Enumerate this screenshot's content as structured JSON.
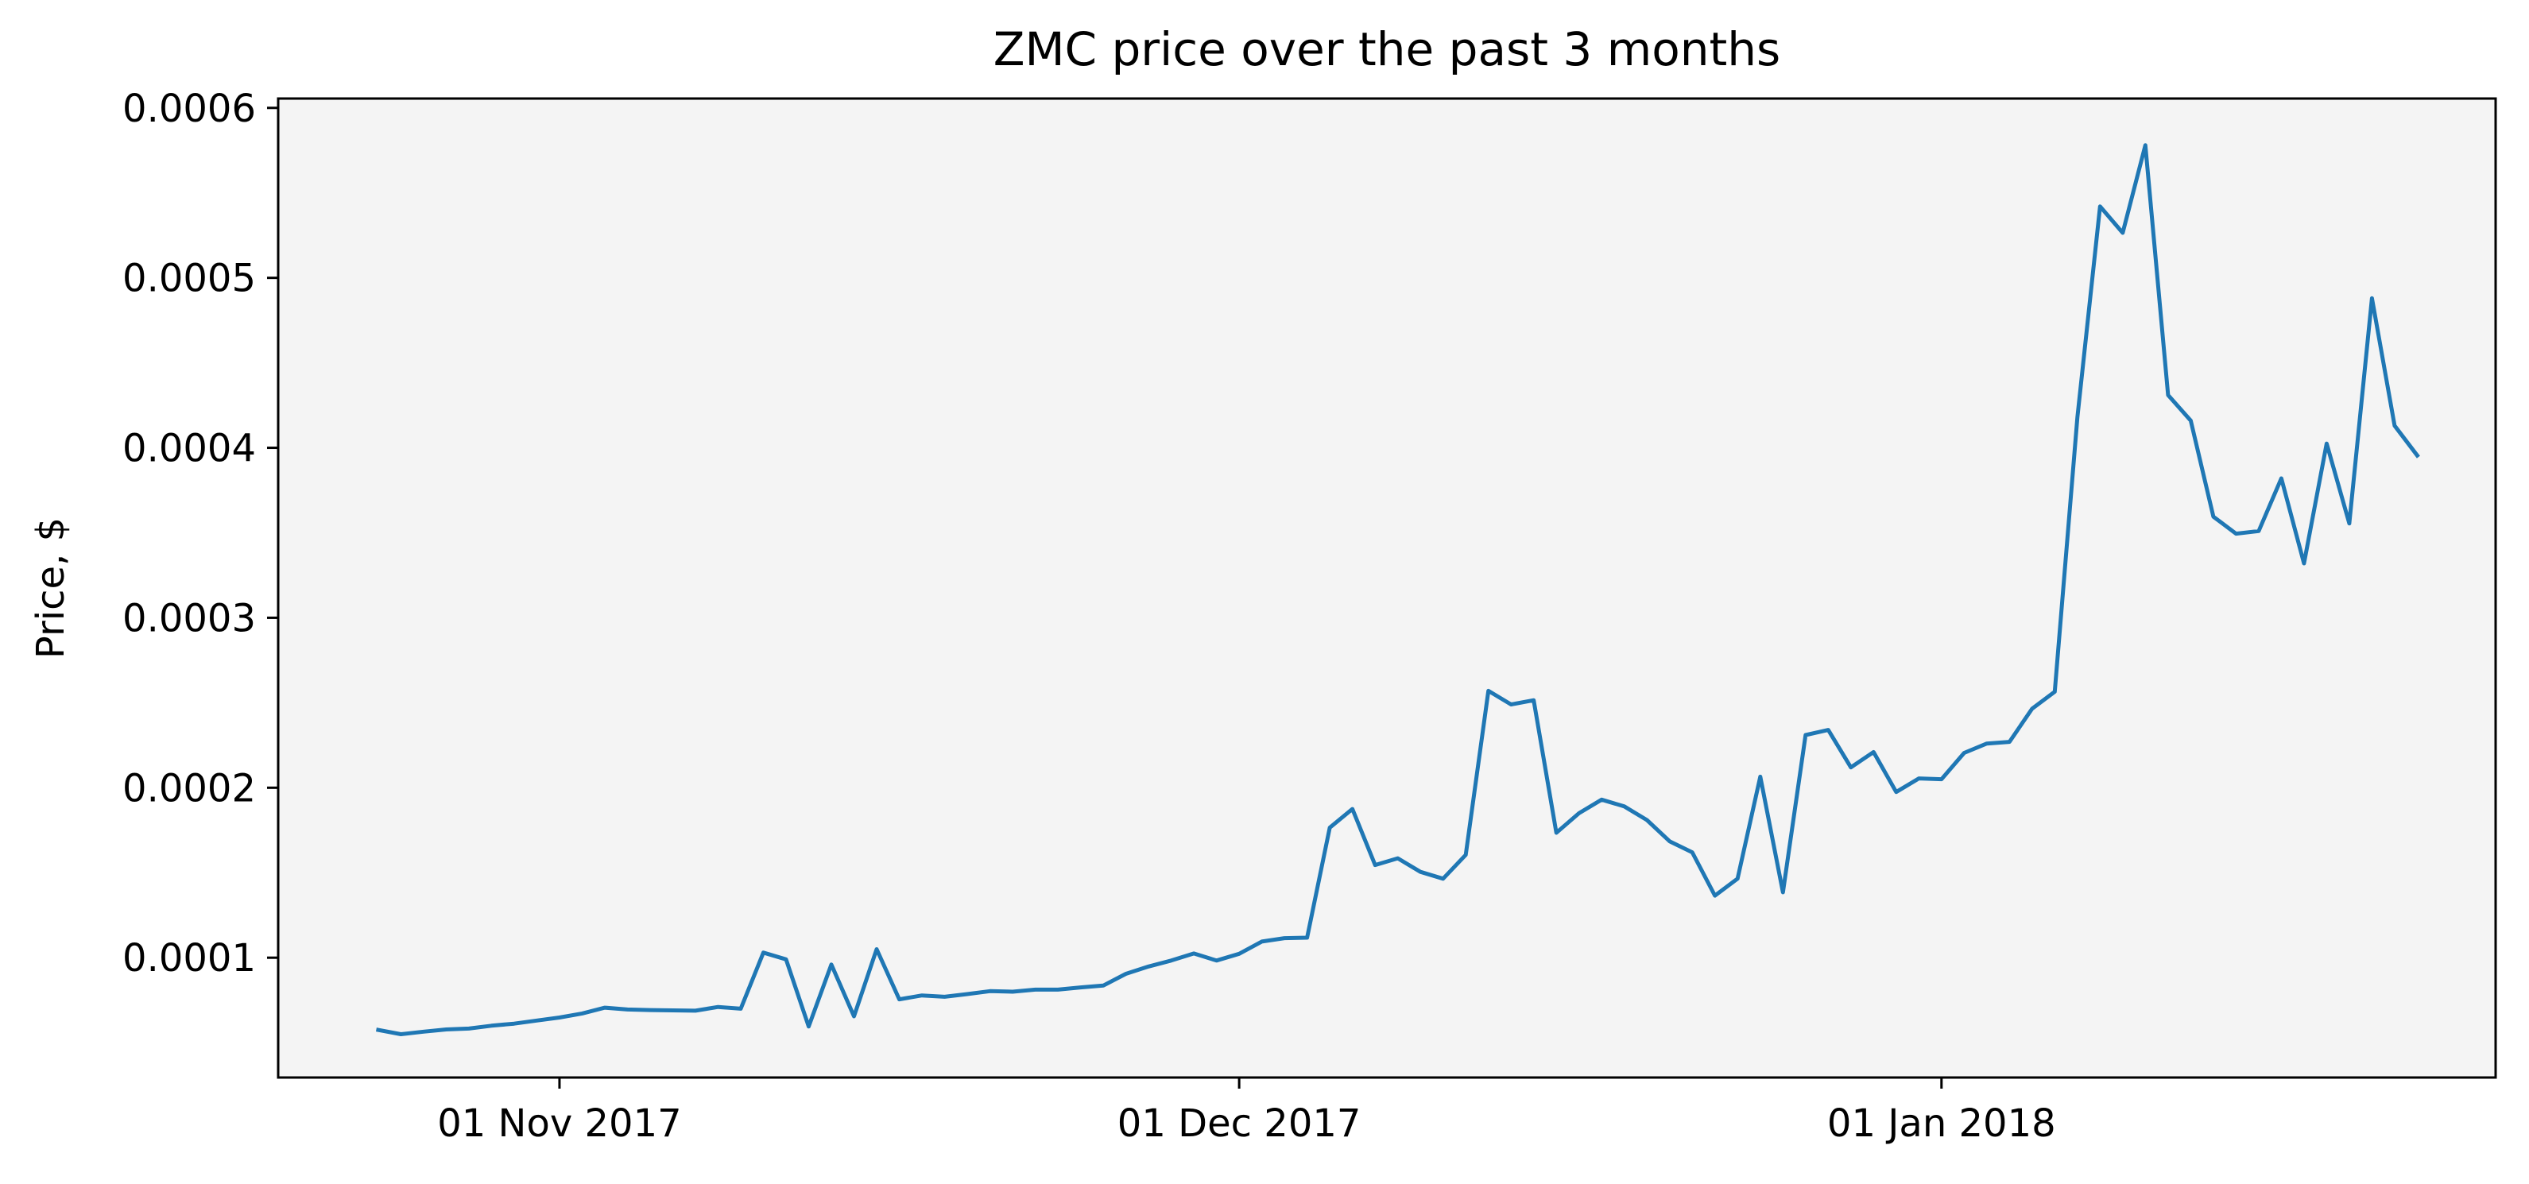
{
  "chart_data": {
    "type": "line",
    "title": "ZMC price over the past 3 months",
    "xlabel": "",
    "ylabel": "Price, $",
    "x_ticks": [
      {
        "date": "2017-11-01",
        "label": "01 Nov 2017"
      },
      {
        "date": "2017-12-01",
        "label": "01 Dec 2017"
      },
      {
        "date": "2018-01-01",
        "label": "01 Jan 2018"
      }
    ],
    "y_ticks": [
      {
        "value": 0.0001,
        "label": "0.0001"
      },
      {
        "value": 0.0002,
        "label": "0.0002"
      },
      {
        "value": 0.0003,
        "label": "0.0003"
      },
      {
        "value": 0.0004,
        "label": "0.0004"
      },
      {
        "value": 0.0005,
        "label": "0.0005"
      },
      {
        "value": 0.0006,
        "label": "0.0006"
      }
    ],
    "xlim": [
      "2017-10-19T14:00",
      "2018-01-25T11:00"
    ],
    "ylim": [
      2.95e-05,
      0.0006055
    ],
    "grid": false,
    "colors": {
      "line": "#1f77b4",
      "plot_background": "#f4f4f4",
      "axes": "#000000"
    },
    "series": [
      {
        "x": [
          "2017-10-24",
          "2017-10-25",
          "2017-10-26",
          "2017-10-27",
          "2017-10-28",
          "2017-10-29",
          "2017-10-30",
          "2017-10-31",
          "2017-11-01",
          "2017-11-02",
          "2017-11-03",
          "2017-11-04",
          "2017-11-05",
          "2017-11-06",
          "2017-11-07",
          "2017-11-08",
          "2017-11-09",
          "2017-11-10",
          "2017-11-11",
          "2017-11-12",
          "2017-11-13",
          "2017-11-14",
          "2017-11-15",
          "2017-11-16",
          "2017-11-17",
          "2017-11-18",
          "2017-11-19",
          "2017-11-20",
          "2017-11-21",
          "2017-11-22",
          "2017-11-23",
          "2017-11-24",
          "2017-11-25",
          "2017-11-26",
          "2017-11-27",
          "2017-11-28",
          "2017-11-29",
          "2017-11-30",
          "2017-12-01",
          "2017-12-02",
          "2017-12-03",
          "2017-12-04",
          "2017-12-05",
          "2017-12-06",
          "2017-12-07",
          "2017-12-08",
          "2017-12-09",
          "2017-12-10",
          "2017-12-11",
          "2017-12-12",
          "2017-12-13",
          "2017-12-14",
          "2017-12-15",
          "2017-12-16",
          "2017-12-17",
          "2017-12-18",
          "2017-12-19",
          "2017-12-20",
          "2017-12-21",
          "2017-12-22",
          "2017-12-23",
          "2017-12-24",
          "2017-12-25",
          "2017-12-26",
          "2017-12-27",
          "2017-12-28",
          "2017-12-29",
          "2017-12-30",
          "2017-12-31",
          "2018-01-01",
          "2018-01-02",
          "2018-01-03",
          "2018-01-04",
          "2018-01-05",
          "2018-01-06",
          "2018-01-07",
          "2018-01-08",
          "2018-01-09",
          "2018-01-10",
          "2018-01-11",
          "2018-01-12",
          "2018-01-13",
          "2018-01-14",
          "2018-01-15",
          "2018-01-16",
          "2018-01-17",
          "2018-01-18",
          "2018-01-19",
          "2018-01-20",
          "2018-01-21",
          "2018-01-22"
        ],
        "y": [
          5.75e-05,
          5.5e-05,
          5.65e-05,
          5.78e-05,
          5.83e-05,
          6e-05,
          6.12e-05,
          6.3e-05,
          6.48e-05,
          6.72e-05,
          7.06e-05,
          6.95e-05,
          6.92e-05,
          6.9e-05,
          6.88e-05,
          7.1e-05,
          7e-05,
          0.000103,
          9.9e-05,
          5.95e-05,
          9.6e-05,
          6.55e-05,
          0.000105,
          7.55e-05,
          7.78e-05,
          7.7e-05,
          7.86e-05,
          8.03e-05,
          8e-05,
          8.12e-05,
          8.12e-05,
          8.25e-05,
          8.36e-05,
          9.05e-05,
          9.48e-05,
          9.83e-05,
          0.0001025,
          9.83e-05,
          0.0001023,
          0.0001095,
          0.0001115,
          0.0001118,
          0.0001765,
          0.0001875,
          0.0001545,
          0.0001585,
          0.0001505,
          0.0001465,
          0.0001605,
          0.000257,
          0.000249,
          0.0002515,
          0.0001735,
          0.000185,
          0.000193,
          0.000189,
          0.000181,
          0.0001685,
          0.000162,
          0.0001365,
          0.0001465,
          0.0002065,
          0.0001385,
          0.000231,
          0.000234,
          0.000212,
          0.000221,
          0.0001975,
          0.0002055,
          0.000205,
          0.0002205,
          0.000226,
          0.000227,
          0.0002465,
          0.0002565,
          0.000418,
          0.000542,
          0.0005265,
          0.000578,
          0.000431,
          0.000416,
          0.0003595,
          0.0003495,
          0.000351,
          0.000382,
          0.000332,
          0.0004025,
          0.0003555,
          0.000488,
          0.000413,
          0.0003955
        ]
      }
    ]
  }
}
